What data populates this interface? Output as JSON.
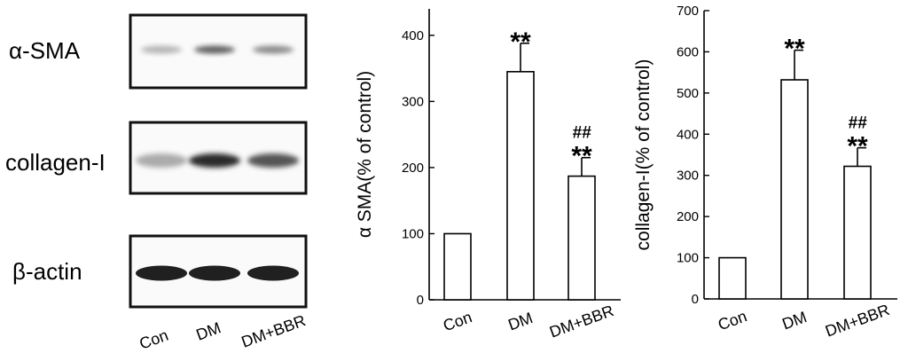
{
  "western_blot": {
    "rows": [
      {
        "label": "α-SMA",
        "band_intensity": [
          0.25,
          0.65,
          0.45
        ]
      },
      {
        "label": "collagen-I",
        "band_intensity": [
          0.3,
          0.9,
          0.7
        ]
      },
      {
        "label": "β-actin",
        "band_intensity": [
          1.0,
          1.0,
          1.0
        ]
      }
    ],
    "lanes": [
      "Con",
      "DM",
      "DM+BBR"
    ]
  },
  "chart_data": [
    {
      "type": "bar",
      "categories": [
        "Con",
        "DM",
        "DM+BBR"
      ],
      "values": [
        100,
        345,
        187
      ],
      "errors": [
        0,
        43,
        28
      ],
      "annotations": [
        [],
        [
          "**"
        ],
        [
          "##",
          "**"
        ]
      ],
      "title": "",
      "xlabel": "",
      "ylabel": "α SMA(% of control)",
      "ylim": [
        0,
        440
      ],
      "yticks": [
        0,
        100,
        200,
        300,
        400
      ],
      "grid": false
    },
    {
      "type": "bar",
      "categories": [
        "Con",
        "DM",
        "DM+BBR"
      ],
      "values": [
        100,
        532,
        322
      ],
      "errors": [
        0,
        72,
        45
      ],
      "annotations": [
        [],
        [
          "**"
        ],
        [
          "##",
          "**"
        ]
      ],
      "title": "",
      "xlabel": "",
      "ylabel": "collagen-I(% of control)",
      "ylim": [
        0,
        700
      ],
      "yticks": [
        0,
        100,
        200,
        300,
        400,
        500,
        600,
        700
      ],
      "grid": false
    }
  ]
}
